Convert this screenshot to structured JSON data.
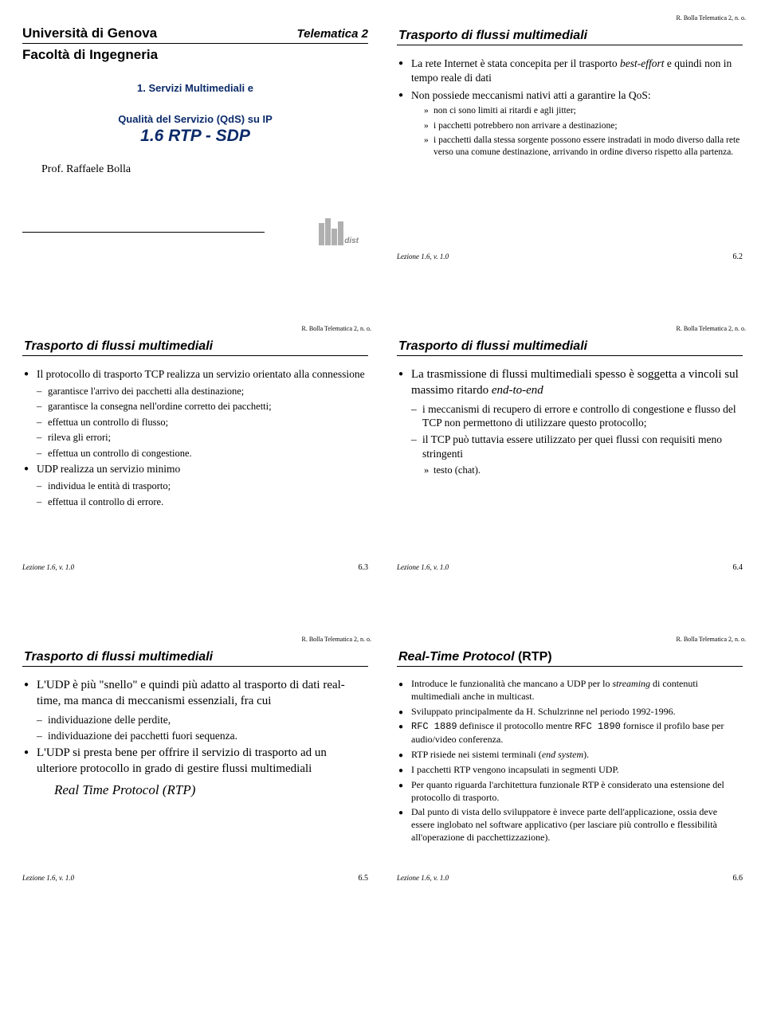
{
  "header_note": "R. Bolla Telematica 2, n. o.",
  "lesson_footer": "Lezione 1.6, v. 1.0",
  "slide1": {
    "university": "Università di Genova",
    "course": "Telematica 2",
    "faculty": "Facoltà di Ingegneria",
    "subtitle1": "1. Servizi Multimediali e",
    "subtitle2": "Qualità del Servizio (QdS) su IP",
    "main": "1.6 RTP - SDP",
    "prof": "Prof. Raffaele Bolla",
    "logo_text": "dist"
  },
  "slide2": {
    "title": "Trasporto di flussi multimediali",
    "page": "6.2",
    "b1a_pre": "La rete Internet è stata concepita per il trasporto ",
    "b1a_em": "best-effort",
    "b1a_post": " e quindi non in tempo reale di dati",
    "b1b": "Non possiede meccanismi nativi atti a garantire la QoS:",
    "b3a": "non ci sono limiti ai ritardi e agli jitter;",
    "b3b": "i pacchetti potrebbero non arrivare a destinazione;",
    "b3c": "i pacchetti dalla stessa sorgente possono essere instradati in modo diverso dalla rete verso una comune destinazione, arrivando in ordine diverso rispetto alla partenza."
  },
  "slide3": {
    "title": "Trasporto di flussi multimediali",
    "page": "6.3",
    "b1a": "Il protocollo di trasporto TCP realizza un servizio orientato alla connessione",
    "b2a": "garantisce l'arrivo dei pacchetti alla destinazione;",
    "b2b": "garantisce la consegna nell'ordine corretto dei pacchetti;",
    "b2c": "effettua un controllo di flusso;",
    "b2d": "rileva gli errori;",
    "b2e": "effettua un controllo di congestione.",
    "b1b": "UDP realizza un servizio minimo",
    "b2f": "individua le entità di trasporto;",
    "b2g": "effettua il controllo di errore."
  },
  "slide4": {
    "title": "Trasporto di flussi multimediali",
    "page": "6.4",
    "b1a_pre": "La trasmissione di flussi multimediali spesso è soggetta a vincoli sul massimo ritardo ",
    "b1a_em": "end-to-end",
    "b2a": "i meccanismi di recupero di errore e controllo di congestione e flusso del TCP non permettono di utilizzare questo protocollo;",
    "b2b": "il TCP può tuttavia essere utilizzato per quei flussi con requisiti meno stringenti",
    "b3a": "testo (chat)."
  },
  "slide5": {
    "title": "Trasporto di flussi multimediali",
    "page": "6.5",
    "b1a": "L'UDP è più \"snello\" e quindi più adatto al trasporto di dati real-time, ma manca di meccanismi essenziali, fra cui",
    "b2a": "individuazione delle perdite,",
    "b2b": "individuazione dei pacchetti fuori sequenza.",
    "b1b": "L'UDP si presta bene per offrire il servizio di trasporto ad un ulteriore protocollo in grado di gestire flussi multimediali",
    "rtp": "Real Time Protocol (RTP)"
  },
  "slide6": {
    "title_em": "Real-Time Protocol",
    "title_post": " (RTP)",
    "page": "6.6",
    "b1a_pre": "Introduce le funzionalità che mancano a UDP per lo ",
    "b1a_em": "streaming",
    "b1a_post": " di contenuti multimediali anche in multicast.",
    "b1b": "Sviluppato principalmente da  H. Schulzrinne nel periodo 1992-1996.",
    "b1c_code1": "RFC 1889",
    "b1c_mid": " definisce il protocollo mentre ",
    "b1c_code2": "RFC 1890",
    "b1c_post": " fornisce il profilo base per audio/video conferenza.",
    "b1d_pre": "RTP risiede nei sistemi terminali (",
    "b1d_em": "end system",
    "b1d_post": ").",
    "b1e": "I pacchetti RTP vengono incapsulati in segmenti UDP.",
    "b1f": "Per quanto riguarda l'architettura funzionale RTP è considerato una estensione del protocollo di trasporto.",
    "b1g": "Dal punto di vista dello sviluppatore è invece parte dell'applicazione, ossia deve essere inglobato nel software applicativo (per lasciare più controllo e flessibilità all'operazione di pacchettizzazione)."
  }
}
